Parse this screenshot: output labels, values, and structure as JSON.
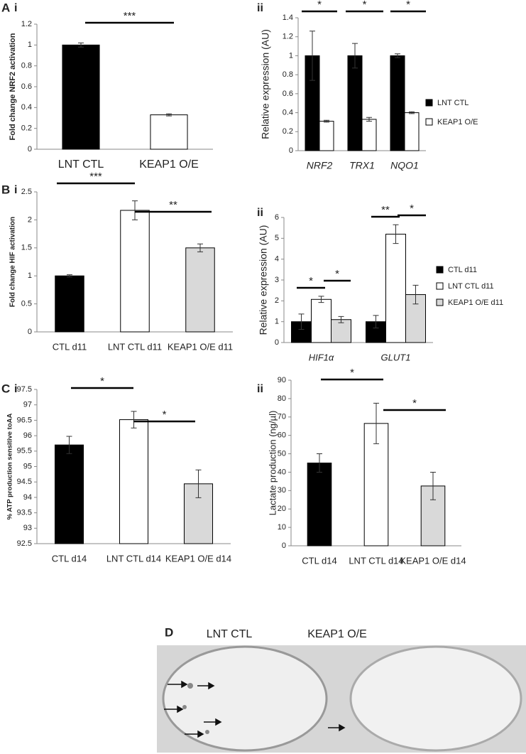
{
  "chart_data": [
    {
      "type": "bar",
      "panel": "A",
      "subpanel": "i",
      "ylabel": "Fold change NRF2 activation",
      "categories": [
        "LNT CTL",
        "KEAP1 O/E"
      ],
      "values": [
        1,
        0.33
      ],
      "errors": [
        0.02,
        0.01
      ],
      "colors": [
        "#000000",
        "#ffffff"
      ],
      "ylim": [
        0,
        1.2
      ],
      "yticks": [
        0,
        0.2,
        0.4,
        0.6,
        0.8,
        1,
        1.2
      ],
      "annotations": [
        "***"
      ]
    },
    {
      "type": "bar",
      "subpanel": "ii",
      "ylabel": "Relative expression (AU)",
      "categories": [
        "NRF2",
        "TRX1",
        "NQO1"
      ],
      "series": [
        {
          "name": "LNT CTL",
          "color": "#000000",
          "values": [
            1,
            1,
            1
          ],
          "errors": [
            0.26,
            0.13,
            0.02
          ]
        },
        {
          "name": "KEAP1 O/E",
          "color": "#ffffff",
          "values": [
            0.31,
            0.33,
            0.4
          ],
          "errors": [
            0.01,
            0.02,
            0.01
          ]
        }
      ],
      "ylim": [
        0,
        1.4
      ],
      "yticks": [
        0,
        0.2,
        0.4,
        0.6,
        0.8,
        1,
        1.2,
        1.4
      ],
      "annotations": [
        "*",
        "*",
        "*"
      ]
    },
    {
      "type": "bar",
      "panel": "B",
      "subpanel": "i",
      "ylabel": "Fold change HIF activation",
      "categories": [
        "CTL d11",
        "LNT CTL d11",
        "KEAP1 O/E d11"
      ],
      "values": [
        1,
        2.17,
        1.5
      ],
      "errors": [
        0.02,
        0.17,
        0.07
      ],
      "colors": [
        "#000000",
        "#ffffff",
        "#d9d9d9"
      ],
      "ylim": [
        0,
        2.5
      ],
      "yticks": [
        0,
        0.5,
        1,
        1.5,
        2,
        2.5
      ],
      "annotations": [
        "***",
        "**"
      ]
    },
    {
      "type": "bar",
      "subpanel": "ii",
      "ylabel": "Relative expression (AU)",
      "categories": [
        "HIF1α",
        "GLUT1"
      ],
      "series": [
        {
          "name": "CTL d11",
          "color": "#000000",
          "values": [
            1,
            1
          ],
          "errors": [
            0.37,
            0.3
          ]
        },
        {
          "name": "LNT CTL d11",
          "color": "#ffffff",
          "values": [
            2.07,
            5.2
          ],
          "errors": [
            0.15,
            0.45
          ]
        },
        {
          "name": "KEAP1 O/E d11",
          "color": "#d9d9d9",
          "values": [
            1.1,
            2.3
          ],
          "errors": [
            0.15,
            0.45
          ]
        }
      ],
      "ylim": [
        0,
        6
      ],
      "yticks": [
        0,
        1,
        2,
        3,
        4,
        5,
        6
      ],
      "annotations": [
        "*",
        "*",
        "**",
        "*"
      ]
    },
    {
      "type": "bar",
      "panel": "C",
      "subpanel": "i",
      "ylabel": "% ATP production sensitive toAA",
      "categories": [
        "CTL d14",
        "LNT CTL d14",
        "KEAP1 O/E d14"
      ],
      "values": [
        95.7,
        96.52,
        94.44
      ],
      "errors": [
        0.28,
        0.27,
        0.45
      ],
      "colors": [
        "#000000",
        "#ffffff",
        "#d9d9d9"
      ],
      "ylim": [
        92.5,
        97.5
      ],
      "yticks": [
        92.5,
        93,
        93.5,
        94,
        94.5,
        95,
        95.5,
        96,
        96.5,
        97,
        97.5
      ],
      "annotations": [
        "*",
        "*"
      ]
    },
    {
      "type": "bar",
      "subpanel": "ii",
      "ylabel": "Lactate production (ng/µl)",
      "categories": [
        "CTL d14",
        "LNT CTL d14",
        "KEAP1 O/E d14"
      ],
      "values": [
        45,
        66.5,
        32.5
      ],
      "errors": [
        5,
        11,
        7.5
      ],
      "colors": [
        "#000000",
        "#ffffff",
        "#d9d9d9"
      ],
      "ylim": [
        0,
        90
      ],
      "yticks": [
        0,
        10,
        20,
        30,
        40,
        50,
        60,
        70,
        80,
        90
      ],
      "annotations": [
        "*",
        "*"
      ]
    }
  ],
  "photo": {
    "panel": "D",
    "labels": [
      "LNT CTL",
      "KEAP1 O/E"
    ]
  }
}
